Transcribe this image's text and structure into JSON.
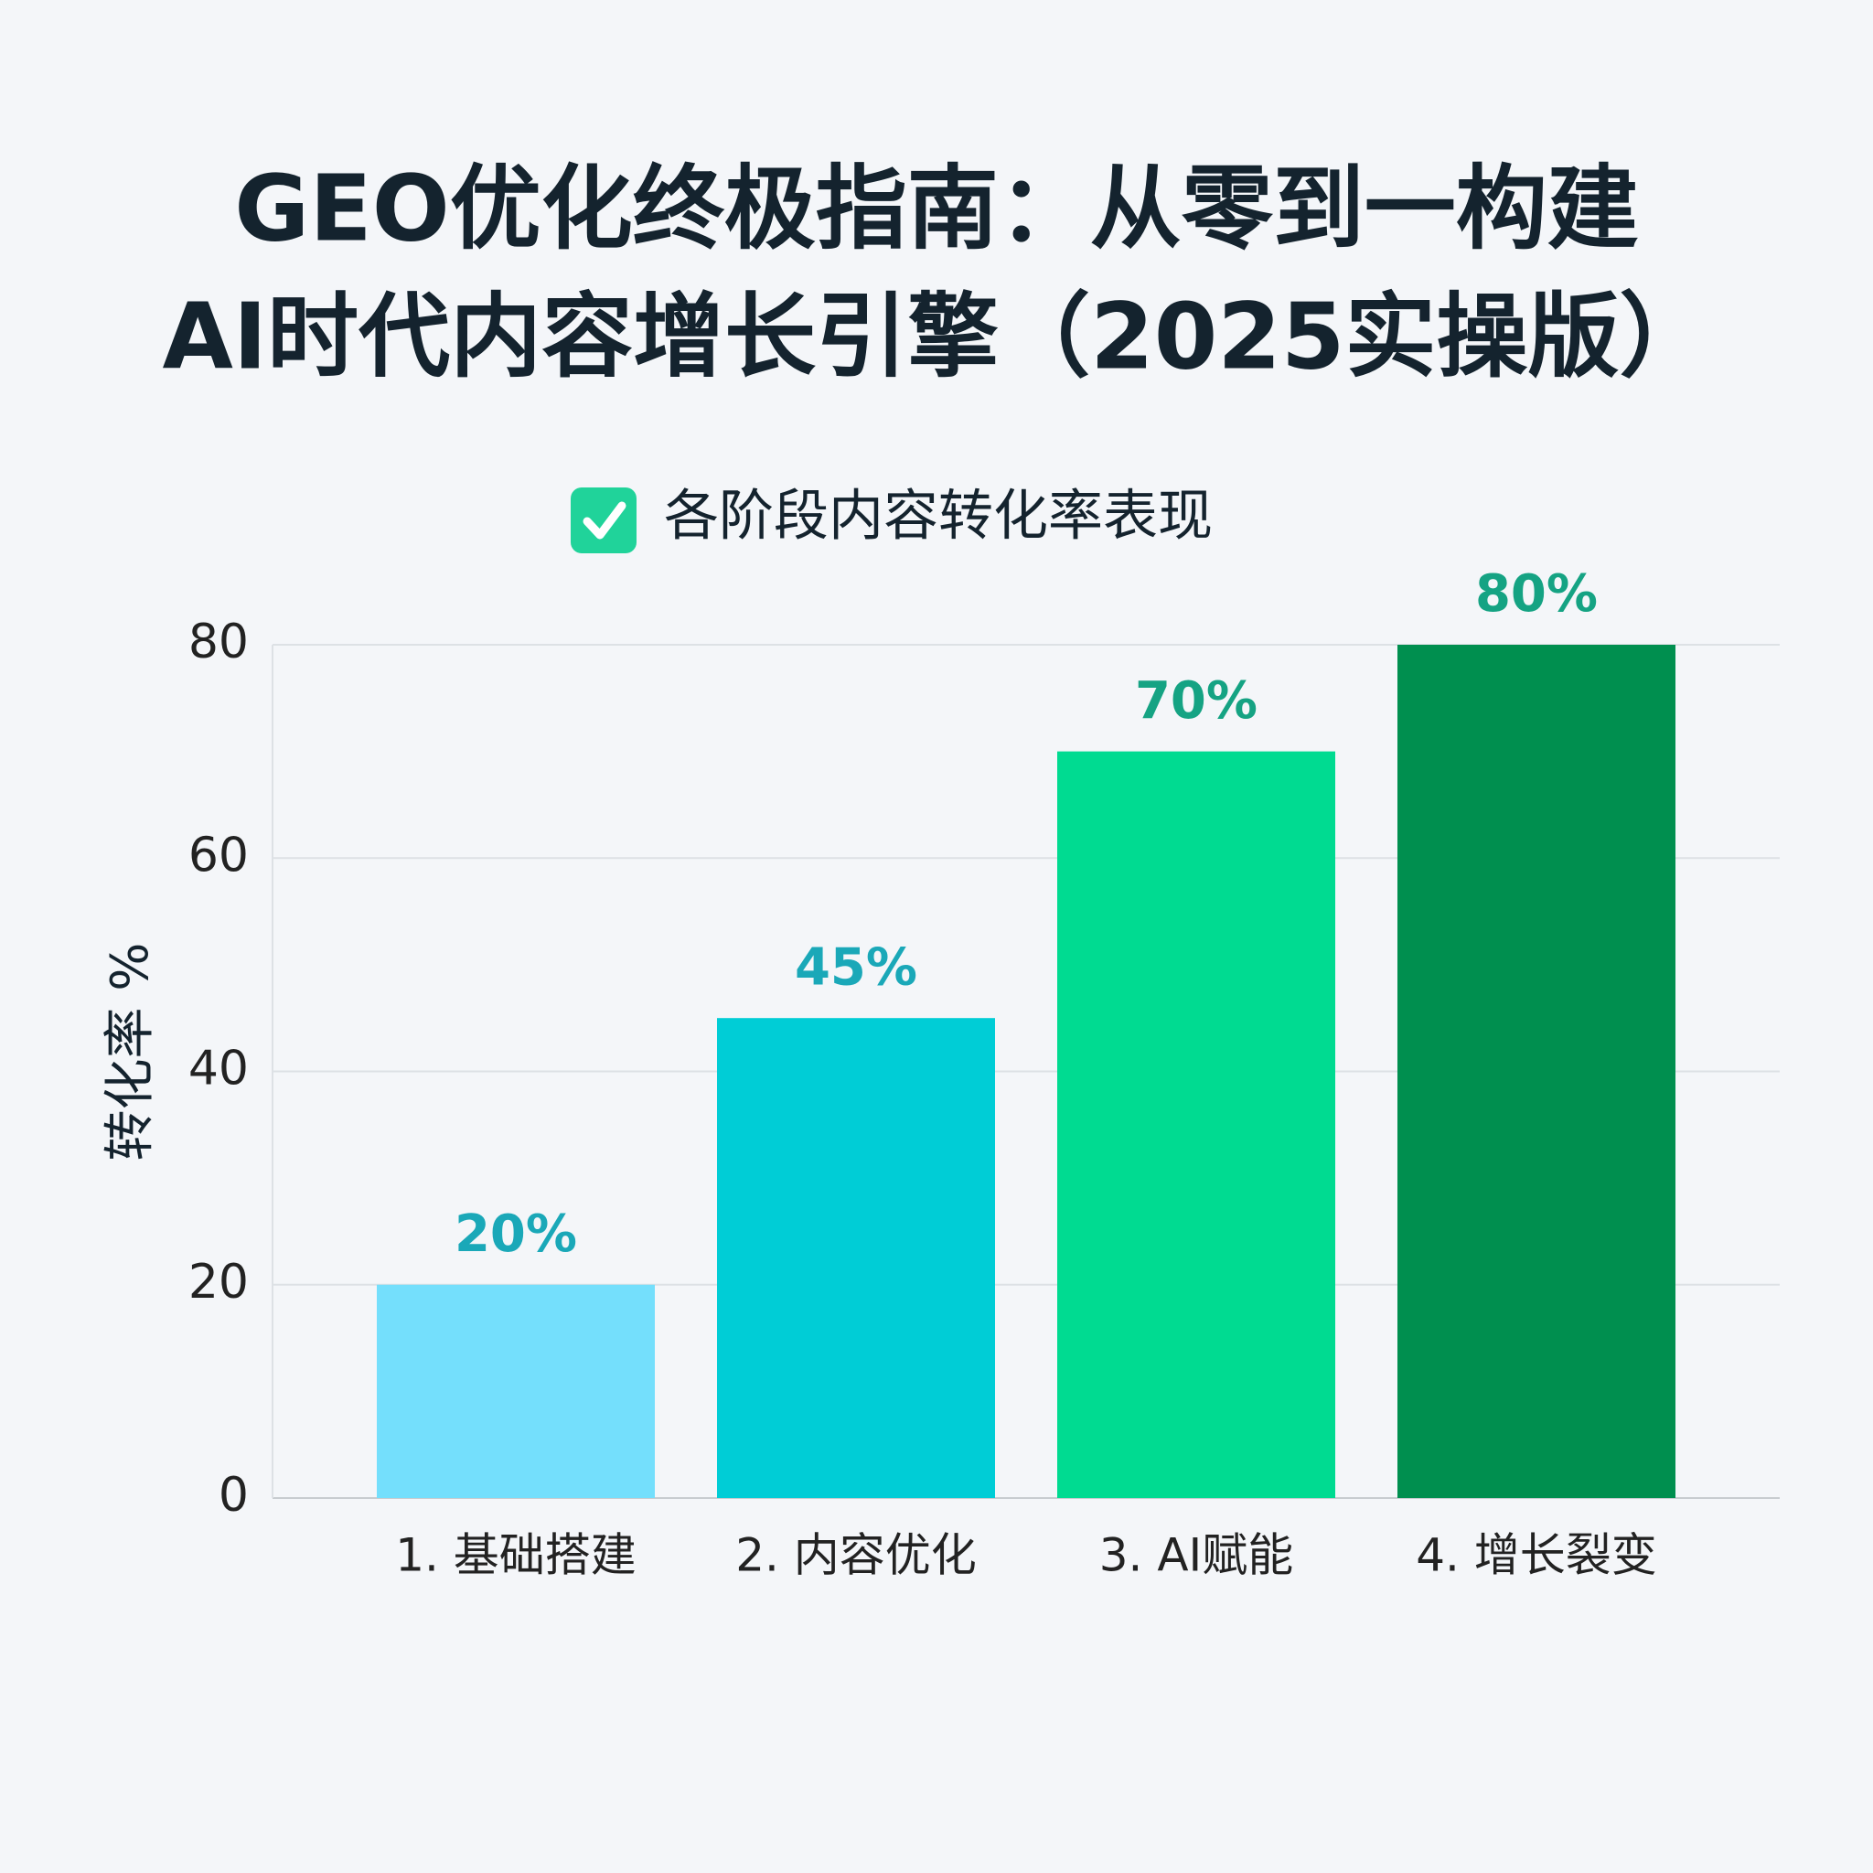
{
  "chart_data": {
    "type": "bar",
    "title": [
      "GEO优化终极指南：从零到一构建",
      "AI时代内容增长引擎（2025实操版）"
    ],
    "subtitle": "各阶段内容转化率表现",
    "y_label": "转化率 %",
    "categories": [
      "1. 基础搭建",
      "2. 内容优化",
      "3. AI赋能",
      "4. 增长裂变"
    ],
    "values": [
      20,
      45,
      70,
      80
    ],
    "value_labels": [
      "20%",
      "45%",
      "70%",
      "80%"
    ],
    "colors": [
      "#74dffc",
      "#00cdd6",
      "#00db91",
      "#008f4f"
    ],
    "value_label_colors": [
      "#1aa8b8",
      "#1aa8b8",
      "#15a383",
      "#15a383"
    ],
    "ylim": [
      0,
      80
    ],
    "yticks": [
      0,
      20,
      40,
      60,
      80
    ],
    "grid": true
  }
}
